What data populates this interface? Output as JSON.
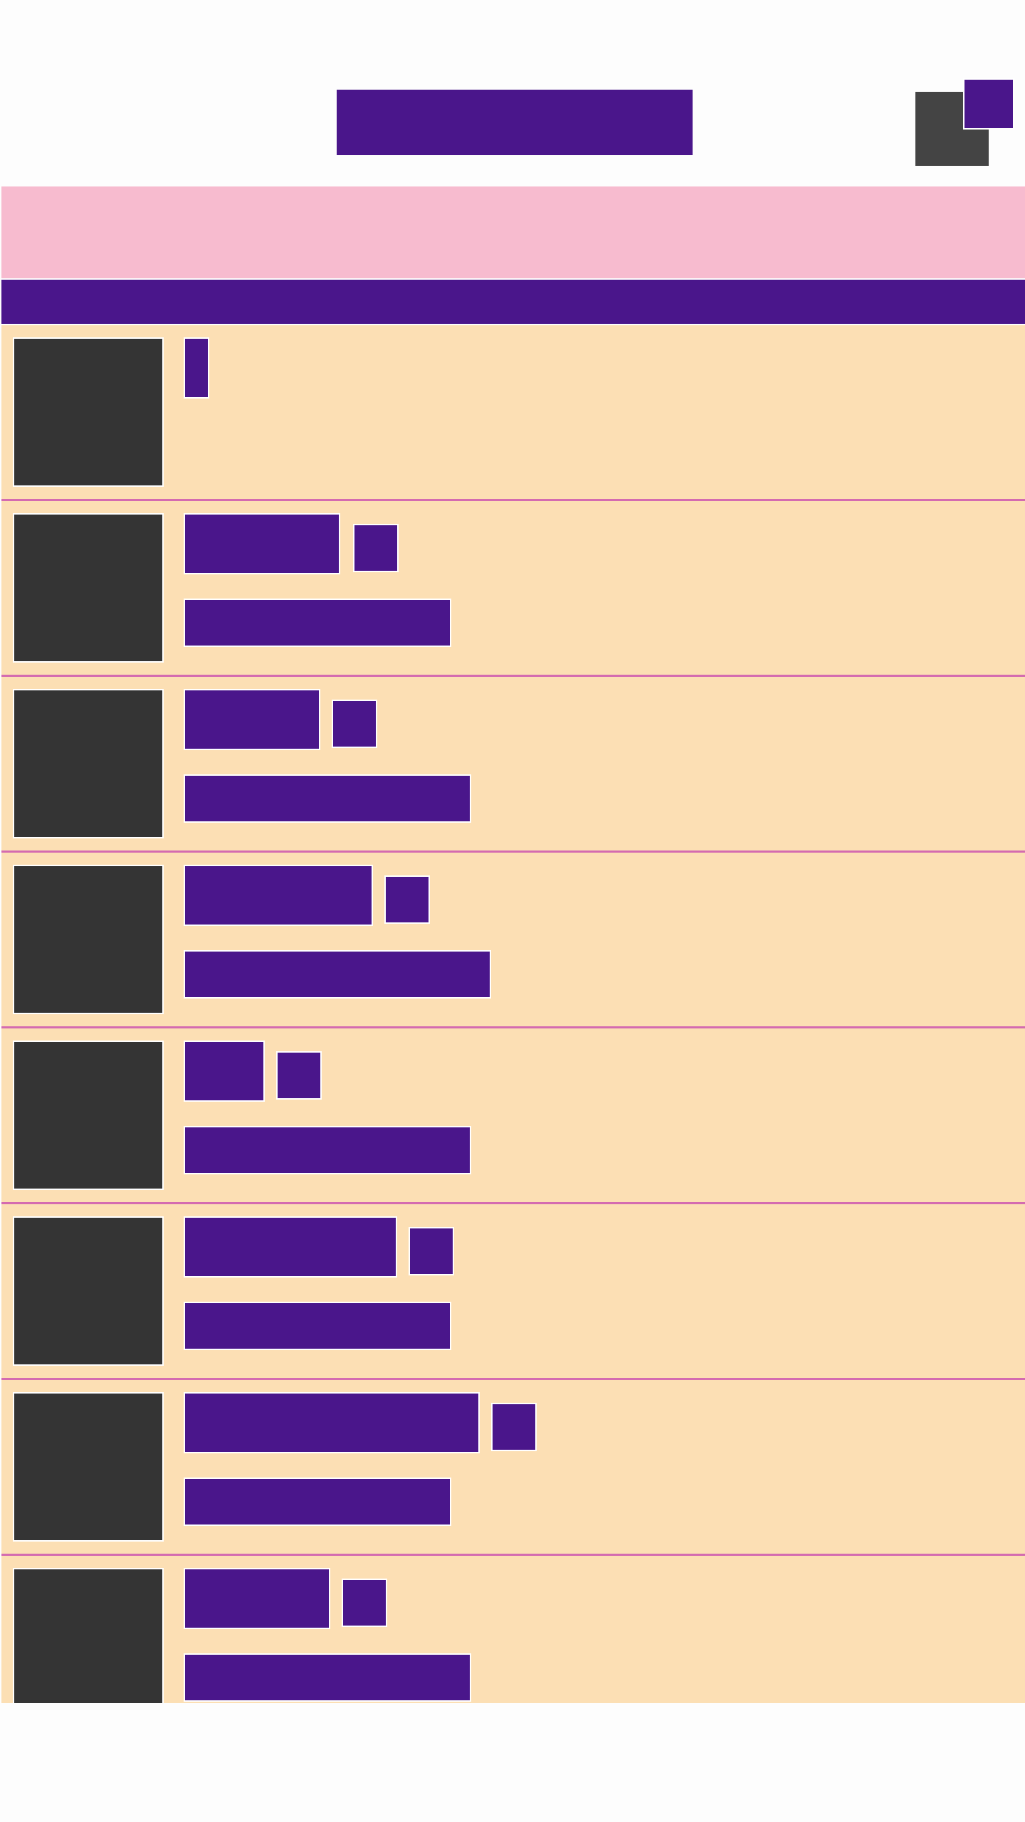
{
  "colors": {
    "page_background": "#fdfdfd",
    "accent": "#4a168b",
    "banner": "#f7bbcf",
    "row_background": "#fcdfb4",
    "row_divider": "#d46bb0",
    "thumbnail": "#343434",
    "corner_tile": "#444444"
  },
  "list": {
    "items": [
      {
        "has_secondary_line": false
      },
      {
        "has_secondary_line": true
      },
      {
        "has_secondary_line": true
      },
      {
        "has_secondary_line": true
      },
      {
        "has_secondary_line": true
      },
      {
        "has_secondary_line": true
      },
      {
        "has_secondary_line": true
      },
      {
        "has_secondary_line": true
      }
    ]
  }
}
